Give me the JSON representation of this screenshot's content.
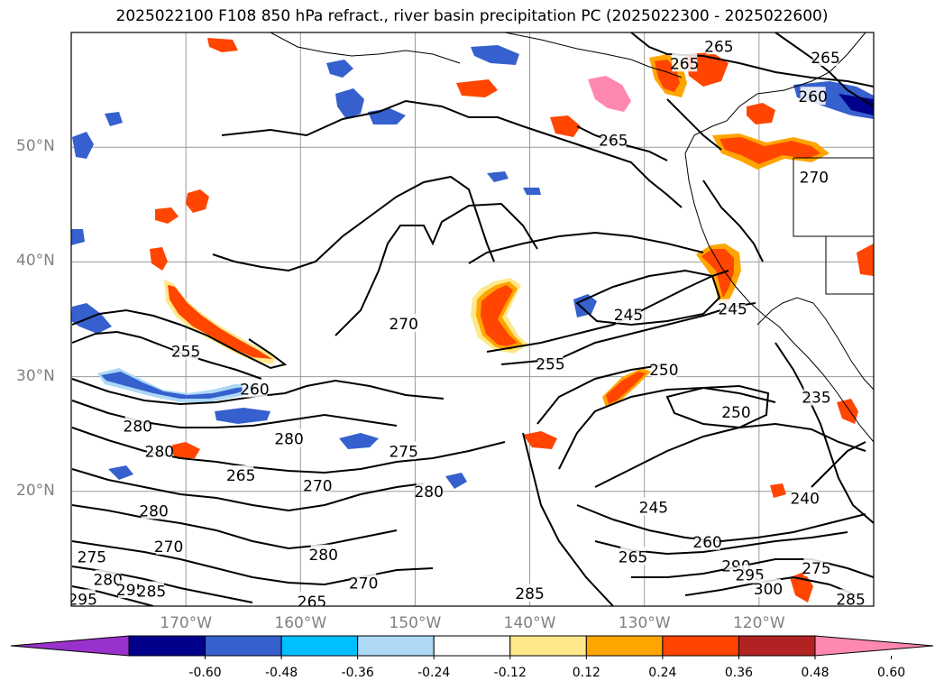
{
  "title": "2025022100 F108 850 hPa refract., river basin precipitation PC (2025022300 - 2025022600)",
  "map": {
    "region": "North-east Pacific Ocean and western North America",
    "contour_field": "850 hPa refractivity",
    "shaded_field": "river basin precipitation PC",
    "lat_labels": [
      "50°N",
      "40°N",
      "30°N",
      "20°N"
    ],
    "lon_labels": [
      "170°W",
      "160°W",
      "150°W",
      "140°W",
      "130°W",
      "120°W"
    ],
    "contour_labels": [
      {
        "text": "265",
        "lon": -126.5,
        "lat": 57.3
      },
      {
        "text": "265",
        "lon": -123.5,
        "lat": 58.8
      },
      {
        "text": "265",
        "lon": -114.2,
        "lat": 57.8
      },
      {
        "text": "265",
        "lon": -132.7,
        "lat": 50.6
      },
      {
        "text": "260",
        "lon": -115.3,
        "lat": 54.4
      },
      {
        "text": "270",
        "lon": -115.2,
        "lat": 47.4
      },
      {
        "text": "270",
        "lon": -151.0,
        "lat": 34.6
      },
      {
        "text": "245",
        "lon": -131.4,
        "lat": 35.4
      },
      {
        "text": "245",
        "lon": -122.3,
        "lat": 35.9
      },
      {
        "text": "255",
        "lon": -170.0,
        "lat": 32.2
      },
      {
        "text": "255",
        "lon": -138.2,
        "lat": 31.1
      },
      {
        "text": "250",
        "lon": -128.3,
        "lat": 30.6
      },
      {
        "text": "260",
        "lon": -164.0,
        "lat": 28.9
      },
      {
        "text": "250",
        "lon": -122.0,
        "lat": 26.9
      },
      {
        "text": "235",
        "lon": -115.0,
        "lat": 28.2
      },
      {
        "text": "280",
        "lon": -174.2,
        "lat": 25.7
      },
      {
        "text": "280",
        "lon": -172.3,
        "lat": 23.5
      },
      {
        "text": "280",
        "lon": -161.0,
        "lat": 24.6
      },
      {
        "text": "275",
        "lon": -151.0,
        "lat": 23.5
      },
      {
        "text": "265",
        "lon": -165.2,
        "lat": 21.4
      },
      {
        "text": "270",
        "lon": -158.5,
        "lat": 20.5
      },
      {
        "text": "280",
        "lon": -148.8,
        "lat": 20.0
      },
      {
        "text": "240",
        "lon": -116.0,
        "lat": 19.4
      },
      {
        "text": "245",
        "lon": -129.2,
        "lat": 18.6
      },
      {
        "text": "280",
        "lon": -172.8,
        "lat": 18.3
      },
      {
        "text": "270",
        "lon": -171.5,
        "lat": 15.2
      },
      {
        "text": "260",
        "lon": -124.5,
        "lat": 15.6
      },
      {
        "text": "275",
        "lon": -178.2,
        "lat": 14.3
      },
      {
        "text": "280",
        "lon": -158.0,
        "lat": 14.5
      },
      {
        "text": "265",
        "lon": -131.0,
        "lat": 14.3
      },
      {
        "text": "290",
        "lon": -122.0,
        "lat": 13.5
      },
      {
        "text": "280",
        "lon": -176.8,
        "lat": 12.3
      },
      {
        "text": "295",
        "lon": -120.8,
        "lat": 12.7
      },
      {
        "text": "275",
        "lon": -115.0,
        "lat": 13.3
      },
      {
        "text": "295",
        "lon": -174.8,
        "lat": 11.4
      },
      {
        "text": "285",
        "lon": -173.0,
        "lat": 11.3
      },
      {
        "text": "270",
        "lon": -154.5,
        "lat": 12.0
      },
      {
        "text": "300",
        "lon": -119.2,
        "lat": 11.5
      },
      {
        "text": "295",
        "lon": -179.0,
        "lat": 10.6
      },
      {
        "text": "265",
        "lon": -159.0,
        "lat": 10.4
      },
      {
        "text": "285",
        "lon": -140.0,
        "lat": 11.1
      },
      {
        "text": "285",
        "lon": -112.0,
        "lat": 10.6
      }
    ]
  },
  "colorbar": {
    "ticks": [
      "-0.60",
      "-0.48",
      "-0.36",
      "-0.24",
      "-0.12",
      "0.12",
      "0.24",
      "0.36",
      "0.48",
      "0.60"
    ],
    "colors": [
      "#9932cc",
      "#00008b",
      "#3560cd",
      "#00bfff",
      "#add8f6",
      "#ffffff",
      "#ffe88a",
      "#ffa500",
      "#ff4500",
      "#b22222",
      "#ff88b0"
    ]
  },
  "chart_data": {
    "type": "heatmap",
    "title": "2025022100 F108 850 hPa refract., river basin precipitation PC (2025022300 - 2025022600)",
    "xlabel": "",
    "ylabel": "",
    "x_ticks": [
      "170°W",
      "160°W",
      "150°W",
      "140°W",
      "130°W",
      "120°W"
    ],
    "y_ticks": [
      "50°N",
      "40°N",
      "30°N",
      "20°N"
    ],
    "xlim": [
      -180,
      -110
    ],
    "ylim": [
      10,
      60
    ],
    "grid": true,
    "colorbar_ticks": [
      -0.6,
      -0.48,
      -0.36,
      -0.24,
      -0.12,
      0.12,
      0.24,
      0.36,
      0.48,
      0.6
    ],
    "colorbar_extend": "both",
    "contour_values_labeled": [
      235,
      240,
      245,
      250,
      255,
      260,
      265,
      270,
      275,
      280,
      285,
      290,
      295,
      300
    ]
  }
}
